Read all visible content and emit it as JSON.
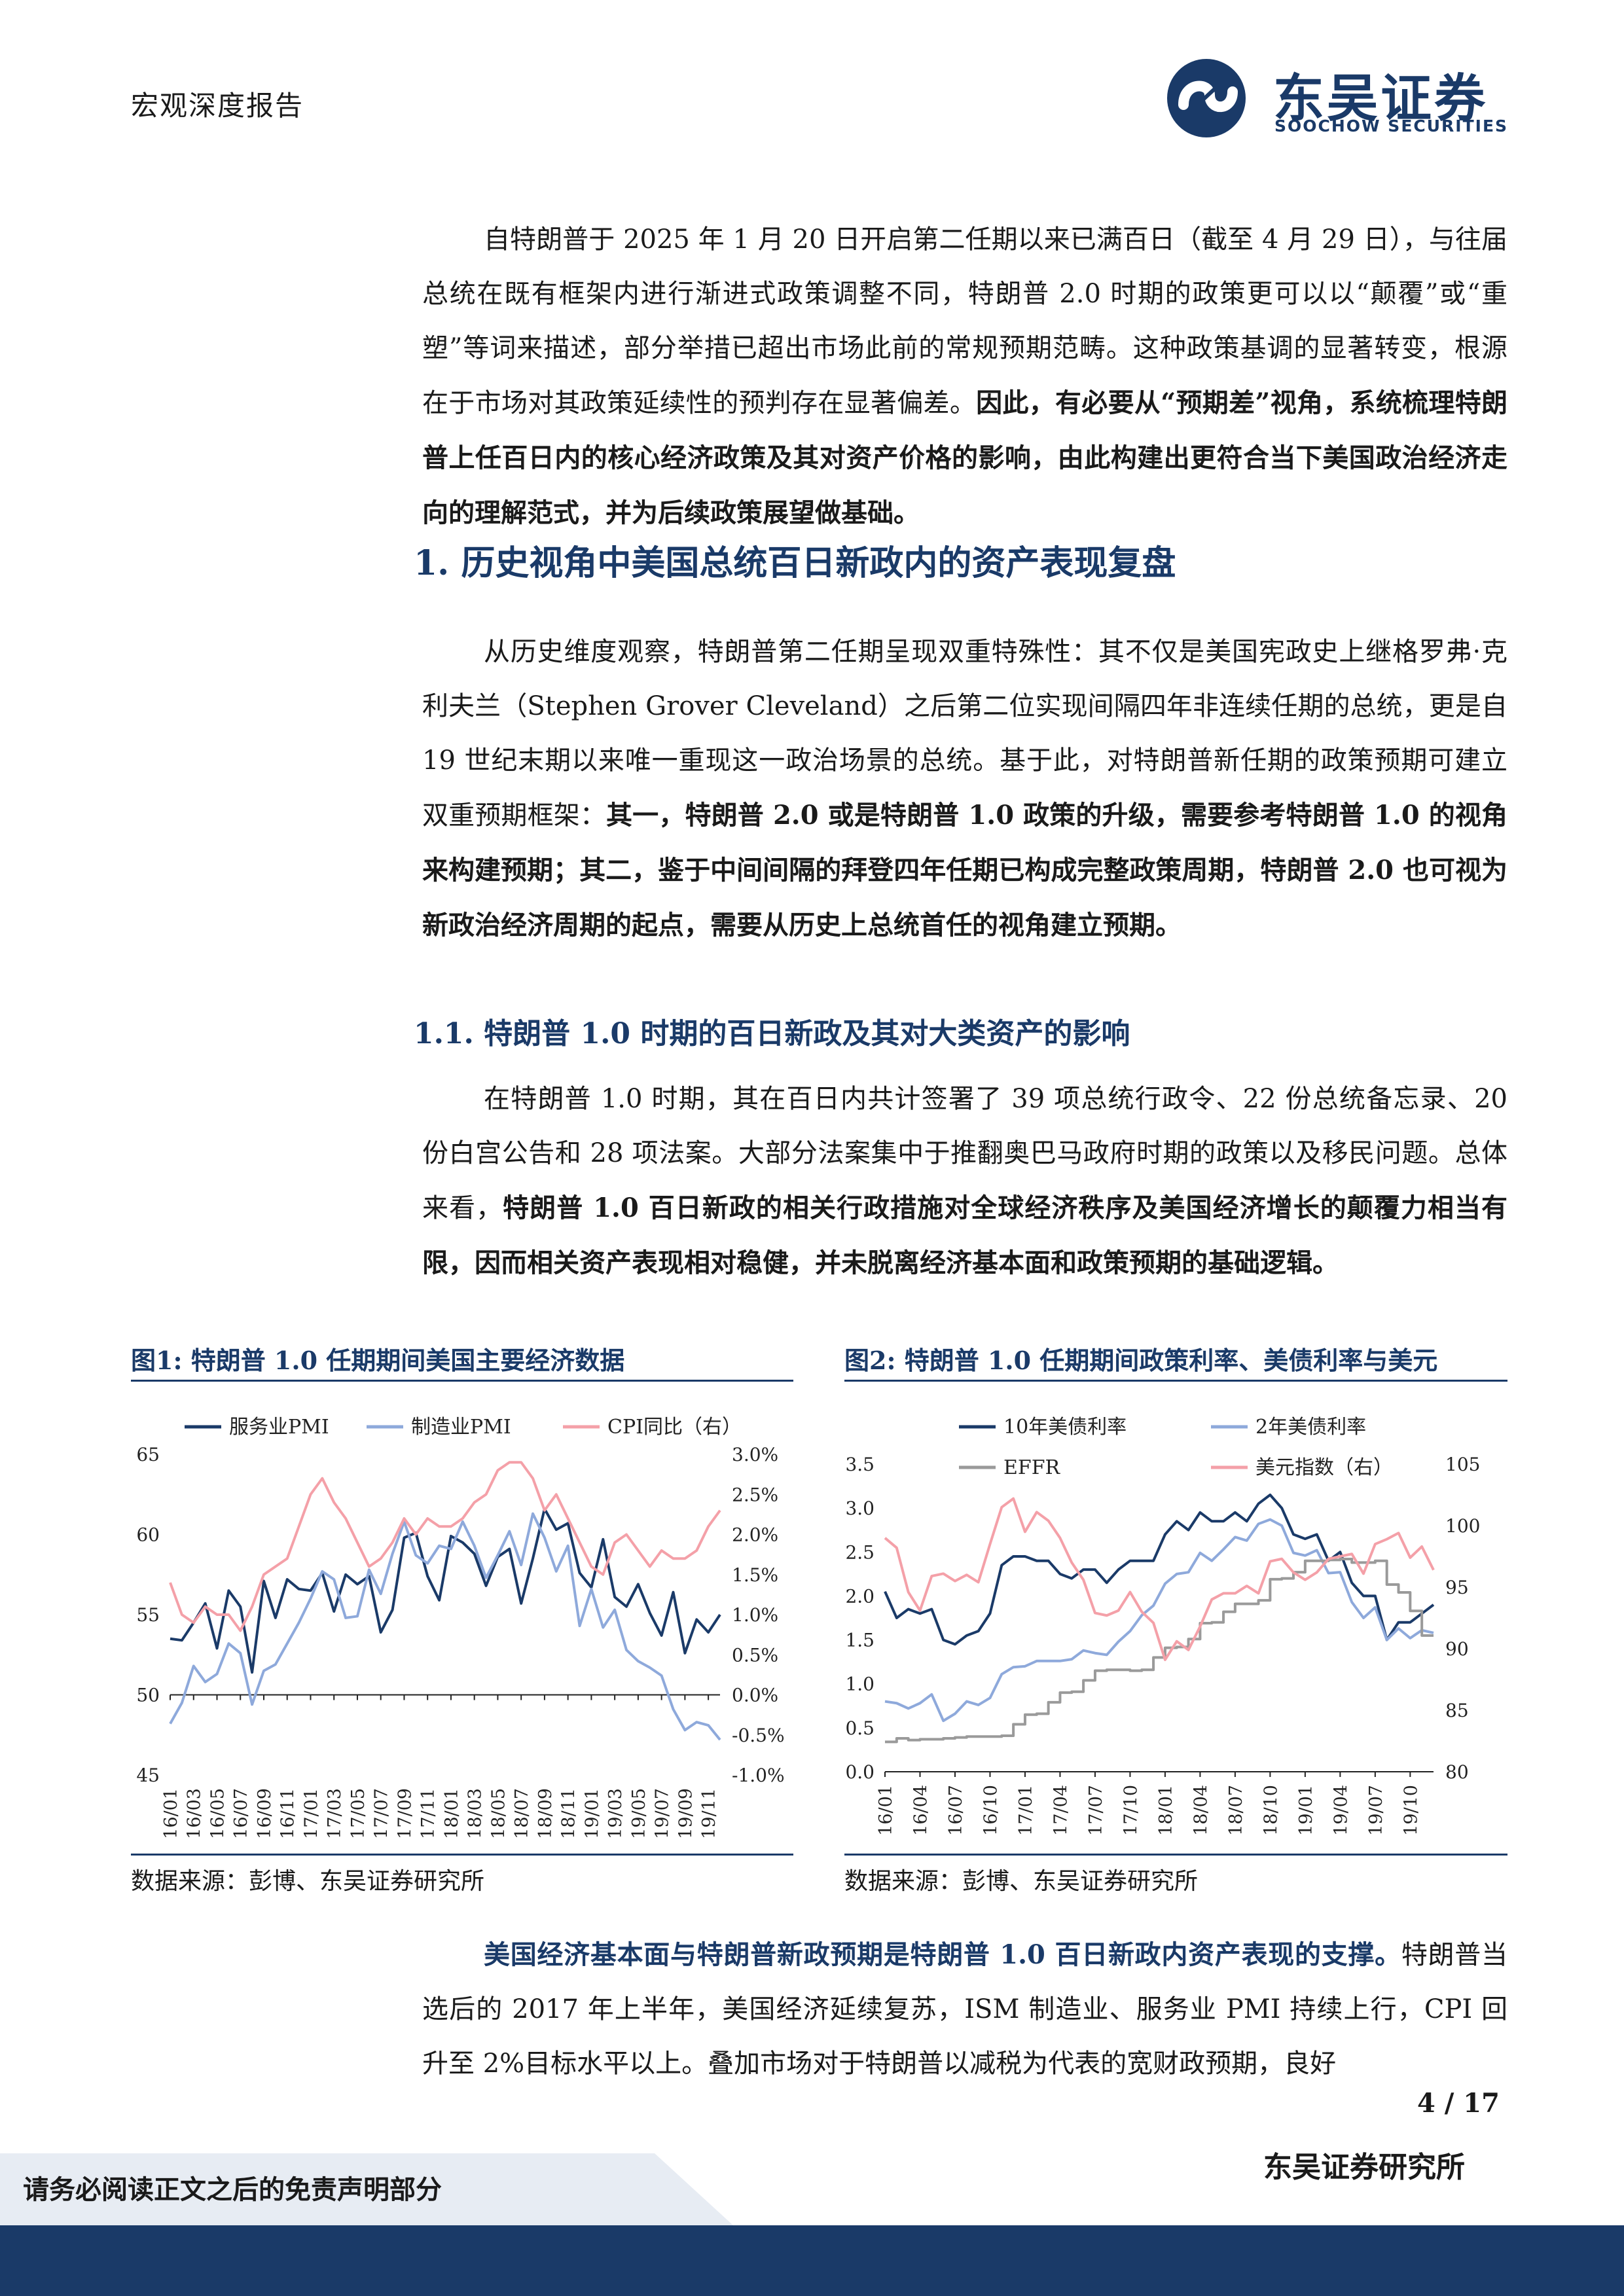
{
  "header": {
    "doc_type": "宏观深度报告",
    "logo_cn": "东吴证券",
    "logo_en": "SOOCHOW SECURITIES"
  },
  "intro": {
    "p1_a": "自特朗普于 2025 年 1 月 20 日开启第二任期以来已满百日（截至 4 月 29 日），与往届总统在既有框架内进行渐进式政策调整不同，特朗普 2.0 时期的政策更可以以“颠覆”或“重塑”等词来描述，部分举措已超出市场此前的常规预期范畴。这种政策基调的显著转变，根源在于市场对其政策延续性的预判存在显著偏差。",
    "p1_b": "因此，有必要从“预期差”视角，系统梳理特朗普上任百日内的核心经济政策及其对资产价格的影响，由此构建出更符合当下美国政治经济走向的理解范式，并为后续政策展望做基础。"
  },
  "section1": {
    "heading": "1.  历史视角中美国总统百日新政内的资产表现复盘",
    "p_a": "从历史维度观察，特朗普第二任期呈现双重特殊性：其不仅是美国宪政史上继格罗弗·克利夫兰（Stephen Grover Cleveland）之后第二位实现间隔四年非连续任期的总统，更是自 19 世纪末期以来唯一重现这一政治场景的总统。基于此，对特朗普新任期的政策预期可建立双重预期框架：",
    "p_b": "其一，特朗普 2.0 或是特朗普 1.0 政策的升级，需要参考特朗普 1.0 的视角来构建预期；其二，鉴于中间间隔的拜登四年任期已构成完整政策周期，特朗普 2.0 也可视为新政治经济周期的起点，需要从历史上总统首任的视角建立预期。"
  },
  "section11": {
    "heading": "1.1.  特朗普 1.0 时期的百日新政及其对大类资产的影响",
    "p_a": "在特朗普 1.0 时期，其在百日内共计签署了 39 项总统行政令、22 份总统备忘录、20 份白宫公告和 28 项法案。大部分法案集中于推翻奥巴马政府时期的政策以及移民问题。总体来看，",
    "p_b": "特朗普 1.0 百日新政的相关行政措施对全球经济秩序及美国经济增长的颠覆力相当有限，因而相关资产表现相对稳健，并未脱离经济基本面和政策预期的基础逻辑。"
  },
  "figure1": {
    "title": "图1:  特朗普 1.0 任期期间美国主要经济数据",
    "source": "数据来源：彭博、东吴证券研究所"
  },
  "figure2": {
    "title": "图2:  特朗普 1.0 任期期间政策利率、美债利率与美元",
    "source": "数据来源：彭博、东吴证券研究所"
  },
  "closing": {
    "p_bold": "美国经济基本面与特朗普新政预期是特朗普 1.0 百日新政内资产表现的支撑。",
    "p_rest": "特朗普当选后的 2017 年上半年，美国经济延续复苏，ISM 制造业、服务业 PMI 持续上行，CPI 回升至 2%目标水平以上。叠加市场对于特朗普以减税为代表的宽财政预期，良好"
  },
  "footer": {
    "page": "4  /  17",
    "org": "东吴证券研究所",
    "disclaimer": "请务必阅读正文之后的免责声明部分"
  },
  "colors": {
    "navy": "#1a3a68",
    "light_blue": "#8ea9db",
    "pink": "#f4a0a8",
    "gray": "#9a9a9a"
  },
  "chart_data": [
    {
      "type": "line",
      "title": "图1:  特朗普 1.0 任期期间美国主要经济数据",
      "x": [
        "16/01",
        "16/02",
        "16/03",
        "16/04",
        "16/05",
        "16/06",
        "16/07",
        "16/08",
        "16/09",
        "16/10",
        "16/11",
        "16/12",
        "17/01",
        "17/02",
        "17/03",
        "17/04",
        "17/05",
        "17/06",
        "17/07",
        "17/08",
        "17/09",
        "17/10",
        "17/11",
        "17/12",
        "18/01",
        "18/02",
        "18/03",
        "18/04",
        "18/05",
        "18/06",
        "18/07",
        "18/08",
        "18/09",
        "18/10",
        "18/11",
        "18/12",
        "19/01",
        "19/02",
        "19/03",
        "19/04",
        "19/05",
        "19/06",
        "19/07",
        "19/08",
        "19/09",
        "19/10",
        "19/11",
        "19/12"
      ],
      "x_ticks": [
        "16/01",
        "16/03",
        "16/05",
        "16/07",
        "16/09",
        "16/11",
        "17/01",
        "17/03",
        "17/05",
        "17/07",
        "17/09",
        "17/11",
        "18/01",
        "18/03",
        "18/05",
        "18/07",
        "18/09",
        "18/11",
        "19/01",
        "19/03",
        "19/05",
        "19/07",
        "19/09",
        "19/11"
      ],
      "y_ticks": [
        "45",
        "50",
        "55",
        "60",
        "65"
      ],
      "y2_ticks": [
        "-1.0%",
        "-0.5%",
        "0.0%",
        "0.5%",
        "1.0%",
        "1.5%",
        "2.0%",
        "2.5%",
        "3.0%"
      ],
      "ylim": [
        45,
        65
      ],
      "y2lim": [
        -1.0,
        3.0
      ],
      "series": [
        {
          "name": "服务业PMI",
          "axis": "left",
          "color": "#1a3a68",
          "values": [
            53.5,
            53.4,
            54.5,
            55.7,
            52.9,
            56.5,
            55.5,
            51.4,
            57.1,
            54.8,
            57.2,
            56.6,
            56.5,
            57.6,
            55.2,
            57.5,
            56.9,
            57.4,
            53.9,
            55.3,
            59.8,
            60.1,
            57.4,
            55.9,
            59.9,
            59.5,
            58.8,
            56.8,
            58.6,
            59.1,
            55.7,
            58.5,
            61.6,
            60.3,
            60.7,
            57.6,
            56.7,
            59.7,
            56.1,
            55.5,
            56.9,
            55.1,
            53.7,
            56.4,
            52.6,
            54.7,
            53.9,
            55.0
          ]
        },
        {
          "name": "制造业PMI",
          "axis": "left",
          "color": "#8ea9db",
          "values": [
            48.2,
            49.5,
            51.8,
            50.8,
            51.3,
            53.2,
            52.6,
            49.4,
            51.5,
            51.9,
            53.2,
            54.5,
            56.0,
            57.7,
            57.2,
            54.8,
            54.9,
            57.8,
            56.3,
            58.8,
            60.8,
            58.7,
            58.2,
            59.3,
            59.1,
            60.8,
            59.3,
            57.3,
            58.7,
            60.2,
            58.1,
            61.3,
            59.8,
            57.7,
            59.3,
            54.3,
            56.6,
            54.2,
            55.3,
            52.8,
            52.1,
            51.7,
            51.2,
            49.1,
            47.8,
            48.3,
            48.1,
            47.2
          ]
        },
        {
          "name": "CPI同比（右）",
          "axis": "right",
          "color": "#f4a0a8",
          "values": [
            1.4,
            1.0,
            0.9,
            1.1,
            1.0,
            1.0,
            0.8,
            1.1,
            1.5,
            1.6,
            1.7,
            2.1,
            2.5,
            2.7,
            2.4,
            2.2,
            1.9,
            1.6,
            1.7,
            1.9,
            2.2,
            2.0,
            2.2,
            2.1,
            2.1,
            2.2,
            2.4,
            2.5,
            2.8,
            2.9,
            2.9,
            2.7,
            2.3,
            2.5,
            2.2,
            1.9,
            1.6,
            1.5,
            1.9,
            2.0,
            1.8,
            1.6,
            1.8,
            1.7,
            1.7,
            1.8,
            2.1,
            2.3
          ]
        }
      ]
    },
    {
      "type": "line",
      "title": "图2:  特朗普 1.0 任期期间政策利率、美债利率与美元",
      "x": [
        "16/01",
        "16/02",
        "16/03",
        "16/04",
        "16/05",
        "16/06",
        "16/07",
        "16/08",
        "16/09",
        "16/10",
        "16/11",
        "16/12",
        "17/01",
        "17/02",
        "17/03",
        "17/04",
        "17/05",
        "17/06",
        "17/07",
        "17/08",
        "17/09",
        "17/10",
        "17/11",
        "17/12",
        "18/01",
        "18/02",
        "18/03",
        "18/04",
        "18/05",
        "18/06",
        "18/07",
        "18/08",
        "18/09",
        "18/10",
        "18/11",
        "18/12",
        "19/01",
        "19/02",
        "19/03",
        "19/04",
        "19/05",
        "19/06",
        "19/07",
        "19/08",
        "19/09",
        "19/10",
        "19/11",
        "19/12"
      ],
      "x_ticks": [
        "16/01",
        "16/04",
        "16/07",
        "16/10",
        "17/01",
        "17/04",
        "17/07",
        "17/10",
        "18/01",
        "18/04",
        "18/07",
        "18/10",
        "19/01",
        "19/04",
        "19/07",
        "19/10"
      ],
      "y_ticks": [
        "0.0",
        "0.5",
        "1.0",
        "1.5",
        "2.0",
        "2.5",
        "3.0",
        "3.5"
      ],
      "y2_ticks": [
        "80",
        "85",
        "90",
        "95",
        "100",
        "105"
      ],
      "ylim": [
        0.0,
        3.5
      ],
      "y2lim": [
        80,
        105
      ],
      "series": [
        {
          "name": "10年美债利率",
          "axis": "left",
          "color": "#1a3a68",
          "values": [
            2.05,
            1.75,
            1.85,
            1.8,
            1.85,
            1.5,
            1.45,
            1.55,
            1.6,
            1.8,
            2.35,
            2.45,
            2.45,
            2.4,
            2.4,
            2.25,
            2.2,
            2.3,
            2.3,
            2.15,
            2.3,
            2.4,
            2.4,
            2.4,
            2.7,
            2.85,
            2.75,
            2.95,
            2.85,
            2.85,
            2.95,
            2.85,
            3.05,
            3.15,
            3.0,
            2.7,
            2.65,
            2.7,
            2.4,
            2.5,
            2.15,
            2.0,
            2.0,
            1.5,
            1.7,
            1.7,
            1.8,
            1.9
          ]
        },
        {
          "name": "2年美债利率",
          "axis": "left",
          "color": "#8ea9db",
          "values": [
            0.8,
            0.78,
            0.72,
            0.78,
            0.88,
            0.58,
            0.66,
            0.8,
            0.76,
            0.84,
            1.11,
            1.19,
            1.2,
            1.26,
            1.26,
            1.26,
            1.28,
            1.38,
            1.35,
            1.33,
            1.48,
            1.6,
            1.78,
            1.89,
            2.14,
            2.25,
            2.27,
            2.49,
            2.4,
            2.53,
            2.67,
            2.63,
            2.82,
            2.87,
            2.8,
            2.49,
            2.46,
            2.52,
            2.26,
            2.27,
            1.93,
            1.75,
            1.87,
            1.5,
            1.63,
            1.52,
            1.61,
            1.58
          ]
        },
        {
          "name": "EFFR",
          "axis": "left",
          "color": "#9a9a9a",
          "values": [
            0.34,
            0.38,
            0.36,
            0.37,
            0.37,
            0.38,
            0.39,
            0.4,
            0.4,
            0.4,
            0.41,
            0.54,
            0.65,
            0.66,
            0.79,
            0.9,
            0.91,
            1.04,
            1.15,
            1.16,
            1.16,
            1.15,
            1.16,
            1.3,
            1.41,
            1.42,
            1.51,
            1.69,
            1.7,
            1.82,
            1.91,
            1.91,
            1.95,
            2.19,
            2.2,
            2.27,
            2.4,
            2.4,
            2.41,
            2.42,
            2.38,
            2.38,
            2.4,
            2.13,
            2.04,
            1.83,
            1.55,
            1.55
          ]
        },
        {
          "name": "美元指数（右）",
          "axis": "right",
          "color": "#f4a0a8",
          "values": [
            99.0,
            98.2,
            94.6,
            93.1,
            95.9,
            96.1,
            95.5,
            96.0,
            95.4,
            98.5,
            101.5,
            102.2,
            99.5,
            101.1,
            100.4,
            99.0,
            97.0,
            95.6,
            92.9,
            92.7,
            93.1,
            94.6,
            93.0,
            92.1,
            89.1,
            90.6,
            89.9,
            91.8,
            94.0,
            94.5,
            94.5,
            95.1,
            94.5,
            97.1,
            97.3,
            96.2,
            95.6,
            96.2,
            97.3,
            97.5,
            97.7,
            96.1,
            98.5,
            98.9,
            99.4,
            97.4,
            98.3,
            96.4
          ]
        }
      ]
    }
  ]
}
